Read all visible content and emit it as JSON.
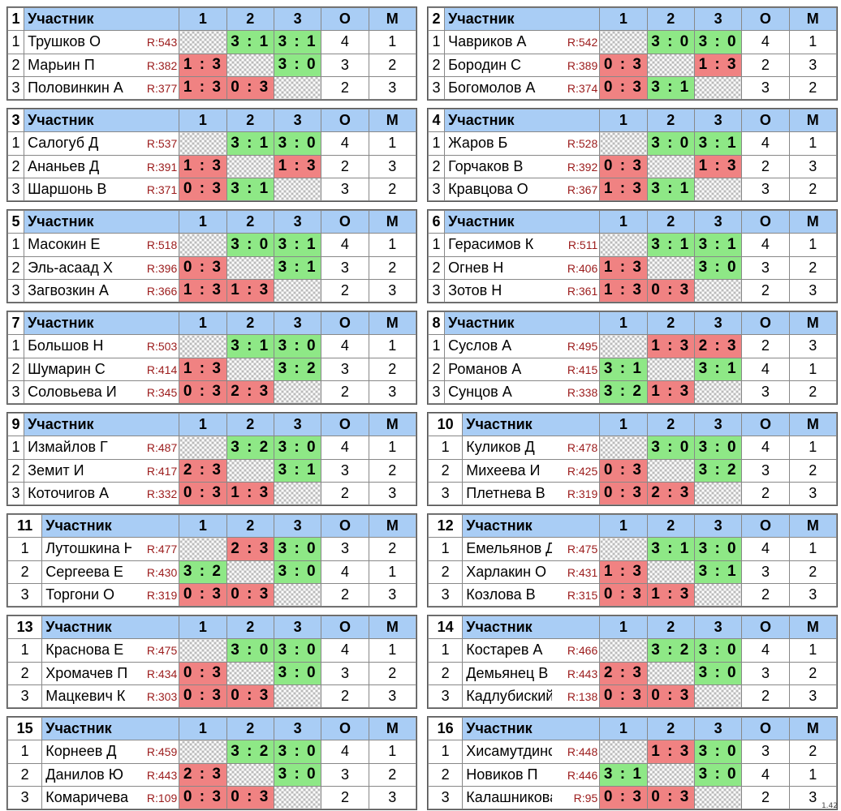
{
  "header": {
    "participant": "Участник",
    "col1": "1",
    "col2": "2",
    "col3": "3",
    "points": "О",
    "place": "М"
  },
  "version": "1.42",
  "groups": [
    {
      "number": "1",
      "rows": [
        {
          "idx": "1",
          "name": "Трушков О",
          "rating": "R:543",
          "s1": "",
          "s2": "3 : 1",
          "s3": "3 : 1",
          "o": "4",
          "m": "1"
        },
        {
          "idx": "2",
          "name": "Марьин П",
          "rating": "R:382",
          "s1": "1 : 3",
          "s2": "",
          "s3": "3 : 0",
          "o": "3",
          "m": "2"
        },
        {
          "idx": "3",
          "name": "Половинкин А",
          "rating": "R:377",
          "s1": "1 : 3",
          "s2": "0 : 3",
          "s3": "",
          "o": "2",
          "m": "3"
        }
      ]
    },
    {
      "number": "2",
      "rows": [
        {
          "idx": "1",
          "name": "Чавриков А",
          "rating": "R:542",
          "s1": "",
          "s2": "3 : 0",
          "s3": "3 : 0",
          "o": "4",
          "m": "1"
        },
        {
          "idx": "2",
          "name": "Бородин С",
          "rating": "R:389",
          "s1": "0 : 3",
          "s2": "",
          "s3": "1 : 3",
          "o": "2",
          "m": "3"
        },
        {
          "idx": "3",
          "name": "Богомолов А",
          "rating": "R:374",
          "s1": "0 : 3",
          "s2": "3 : 1",
          "s3": "",
          "o": "3",
          "m": "2"
        }
      ]
    },
    {
      "number": "3",
      "rows": [
        {
          "idx": "1",
          "name": "Салогуб Д",
          "rating": "R:537",
          "s1": "",
          "s2": "3 : 1",
          "s3": "3 : 0",
          "o": "4",
          "m": "1"
        },
        {
          "idx": "2",
          "name": "Ананьев Д",
          "rating": "R:391",
          "s1": "1 : 3",
          "s2": "",
          "s3": "1 : 3",
          "o": "2",
          "m": "3"
        },
        {
          "idx": "3",
          "name": "Шаршонь В",
          "rating": "R:371",
          "s1": "0 : 3",
          "s2": "3 : 1",
          "s3": "",
          "o": "3",
          "m": "2"
        }
      ]
    },
    {
      "number": "4",
      "rows": [
        {
          "idx": "1",
          "name": "Жаров Б",
          "rating": "R:528",
          "s1": "",
          "s2": "3 : 0",
          "s3": "3 : 1",
          "o": "4",
          "m": "1"
        },
        {
          "idx": "2",
          "name": "Горчаков В",
          "rating": "R:392",
          "s1": "0 : 3",
          "s2": "",
          "s3": "1 : 3",
          "o": "2",
          "m": "3"
        },
        {
          "idx": "3",
          "name": "Кравцова О",
          "rating": "R:367",
          "s1": "1 : 3",
          "s2": "3 : 1",
          "s3": "",
          "o": "3",
          "m": "2"
        }
      ]
    },
    {
      "number": "5",
      "rows": [
        {
          "idx": "1",
          "name": "Масокин Е",
          "rating": "R:518",
          "s1": "",
          "s2": "3 : 0",
          "s3": "3 : 1",
          "o": "4",
          "m": "1"
        },
        {
          "idx": "2",
          "name": "Эль-асаад Х",
          "rating": "R:396",
          "s1": "0 : 3",
          "s2": "",
          "s3": "3 : 1",
          "o": "3",
          "m": "2"
        },
        {
          "idx": "3",
          "name": "Загвозкин А",
          "rating": "R:366",
          "s1": "1 : 3",
          "s2": "1 : 3",
          "s3": "",
          "o": "2",
          "m": "3"
        }
      ]
    },
    {
      "number": "6",
      "rows": [
        {
          "idx": "1",
          "name": "Герасимов К",
          "rating": "R:511",
          "s1": "",
          "s2": "3 : 1",
          "s3": "3 : 1",
          "o": "4",
          "m": "1"
        },
        {
          "idx": "2",
          "name": "Огнев Н",
          "rating": "R:406",
          "s1": "1 : 3",
          "s2": "",
          "s3": "3 : 0",
          "o": "3",
          "m": "2"
        },
        {
          "idx": "3",
          "name": "Зотов Н",
          "rating": "R:361",
          "s1": "1 : 3",
          "s2": "0 : 3",
          "s3": "",
          "o": "2",
          "m": "3"
        }
      ]
    },
    {
      "number": "7",
      "rows": [
        {
          "idx": "1",
          "name": "Большов Н",
          "rating": "R:503",
          "s1": "",
          "s2": "3 : 1",
          "s3": "3 : 0",
          "o": "4",
          "m": "1"
        },
        {
          "idx": "2",
          "name": "Шумарин С",
          "rating": "R:414",
          "s1": "1 : 3",
          "s2": "",
          "s3": "3 : 2",
          "o": "3",
          "m": "2"
        },
        {
          "idx": "3",
          "name": "Соловьева И",
          "rating": "R:345",
          "s1": "0 : 3",
          "s2": "2 : 3",
          "s3": "",
          "o": "2",
          "m": "3"
        }
      ]
    },
    {
      "number": "8",
      "rows": [
        {
          "idx": "1",
          "name": "Суслов А",
          "rating": "R:495",
          "s1": "",
          "s2": "1 : 3",
          "s3": "2 : 3",
          "o": "2",
          "m": "3"
        },
        {
          "idx": "2",
          "name": "Романов А",
          "rating": "R:415",
          "s1": "3 : 1",
          "s2": "",
          "s3": "3 : 1",
          "o": "4",
          "m": "1"
        },
        {
          "idx": "3",
          "name": "Сунцов А",
          "rating": "R:338",
          "s1": "3 : 2",
          "s2": "1 : 3",
          "s3": "",
          "o": "3",
          "m": "2"
        }
      ]
    },
    {
      "number": "9",
      "rows": [
        {
          "idx": "1",
          "name": "Измайлов Г",
          "rating": "R:487",
          "s1": "",
          "s2": "3 : 2",
          "s3": "3 : 0",
          "o": "4",
          "m": "1"
        },
        {
          "idx": "2",
          "name": "Земит И",
          "rating": "R:417",
          "s1": "2 : 3",
          "s2": "",
          "s3": "3 : 1",
          "o": "3",
          "m": "2"
        },
        {
          "idx": "3",
          "name": "Коточигов А",
          "rating": "R:332",
          "s1": "0 : 3",
          "s2": "1 : 3",
          "s3": "",
          "o": "2",
          "m": "3"
        }
      ]
    },
    {
      "number": "10",
      "rows": [
        {
          "idx": "1",
          "name": "Куликов Д",
          "rating": "R:478",
          "s1": "",
          "s2": "3 : 0",
          "s3": "3 : 0",
          "o": "4",
          "m": "1"
        },
        {
          "idx": "2",
          "name": "Михеева И",
          "rating": "R:425",
          "s1": "0 : 3",
          "s2": "",
          "s3": "3 : 2",
          "o": "3",
          "m": "2"
        },
        {
          "idx": "3",
          "name": "Плетнева В",
          "rating": "R:319",
          "s1": "0 : 3",
          "s2": "2 : 3",
          "s3": "",
          "o": "2",
          "m": "3"
        }
      ]
    },
    {
      "number": "11",
      "rows": [
        {
          "idx": "1",
          "name": "Лутошкина Н",
          "rating": "R:477",
          "s1": "",
          "s2": "2 : 3",
          "s3": "3 : 0",
          "o": "3",
          "m": "2"
        },
        {
          "idx": "2",
          "name": "Сергеева Е",
          "rating": "R:430",
          "s1": "3 : 2",
          "s2": "",
          "s3": "3 : 0",
          "o": "4",
          "m": "1"
        },
        {
          "idx": "3",
          "name": "Торгони О",
          "rating": "R:319",
          "s1": "0 : 3",
          "s2": "0 : 3",
          "s3": "",
          "o": "2",
          "m": "3"
        }
      ]
    },
    {
      "number": "12",
      "rows": [
        {
          "idx": "1",
          "name": "Емельянов Д",
          "rating": "R:475",
          "s1": "",
          "s2": "3 : 1",
          "s3": "3 : 0",
          "o": "4",
          "m": "1"
        },
        {
          "idx": "2",
          "name": "Харлакин О",
          "rating": "R:431",
          "s1": "1 : 3",
          "s2": "",
          "s3": "3 : 1",
          "o": "3",
          "m": "2"
        },
        {
          "idx": "3",
          "name": "Козлова В",
          "rating": "R:315",
          "s1": "0 : 3",
          "s2": "1 : 3",
          "s3": "",
          "o": "2",
          "m": "3"
        }
      ]
    },
    {
      "number": "13",
      "rows": [
        {
          "idx": "1",
          "name": "Краснова Е",
          "rating": "R:475",
          "s1": "",
          "s2": "3 : 0",
          "s3": "3 : 0",
          "o": "4",
          "m": "1"
        },
        {
          "idx": "2",
          "name": "Хромачев П",
          "rating": "R:434",
          "s1": "0 : 3",
          "s2": "",
          "s3": "3 : 0",
          "o": "3",
          "m": "2"
        },
        {
          "idx": "3",
          "name": "Мацкевич К",
          "rating": "R:303",
          "s1": "0 : 3",
          "s2": "0 : 3",
          "s3": "",
          "o": "2",
          "m": "3"
        }
      ]
    },
    {
      "number": "14",
      "rows": [
        {
          "idx": "1",
          "name": "Костарев А",
          "rating": "R:466",
          "s1": "",
          "s2": "3 : 2",
          "s3": "3 : 0",
          "o": "4",
          "m": "1"
        },
        {
          "idx": "2",
          "name": "Демьянец В",
          "rating": "R:443",
          "s1": "2 : 3",
          "s2": "",
          "s3": "3 : 0",
          "o": "3",
          "m": "2"
        },
        {
          "idx": "3",
          "name": "Кадлубиский",
          "rating": "R:138",
          "s1": "0 : 3",
          "s2": "0 : 3",
          "s3": "",
          "o": "2",
          "m": "3"
        }
      ]
    },
    {
      "number": "15",
      "rows": [
        {
          "idx": "1",
          "name": "Корнеев Д",
          "rating": "R:459",
          "s1": "",
          "s2": "3 : 2",
          "s3": "3 : 0",
          "o": "4",
          "m": "1"
        },
        {
          "idx": "2",
          "name": "Данилов Ю",
          "rating": "R:443",
          "s1": "2 : 3",
          "s2": "",
          "s3": "3 : 0",
          "o": "3",
          "m": "2"
        },
        {
          "idx": "3",
          "name": "Комаричева",
          "rating": "R:109",
          "s1": "0 : 3",
          "s2": "0 : 3",
          "s3": "",
          "o": "2",
          "m": "3"
        }
      ]
    },
    {
      "number": "16",
      "rows": [
        {
          "idx": "1",
          "name": "Хисамутдинс",
          "rating": "R:448",
          "s1": "",
          "s2": "1 : 3",
          "s3": "3 : 0",
          "o": "3",
          "m": "2"
        },
        {
          "idx": "2",
          "name": "Новиков П",
          "rating": "R:446",
          "s1": "3 : 1",
          "s2": "",
          "s3": "3 : 0",
          "o": "4",
          "m": "1"
        },
        {
          "idx": "3",
          "name": "Калашникова",
          "rating": "R:95",
          "s1": "0 : 3",
          "s2": "0 : 3",
          "s3": "",
          "o": "2",
          "m": "3"
        }
      ]
    }
  ]
}
